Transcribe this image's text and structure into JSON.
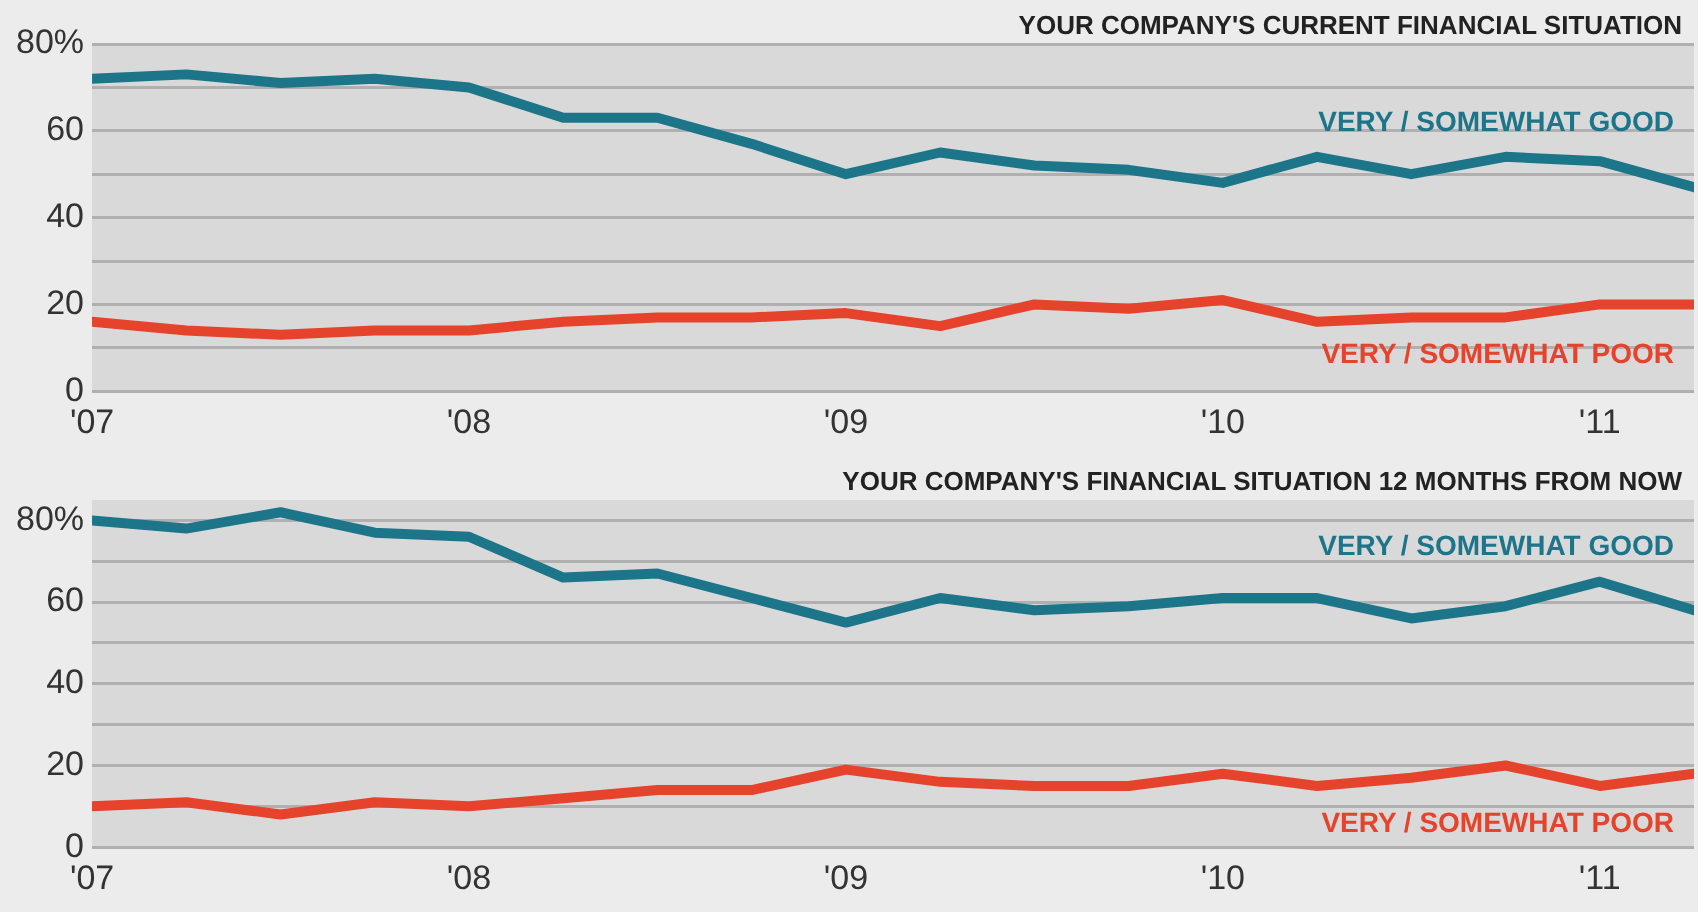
{
  "chart_data": [
    {
      "type": "line",
      "title": "YOUR COMPANY'S CURRENT FINANCIAL SITUATION",
      "x": [
        2007,
        2007.25,
        2007.5,
        2007.75,
        2008,
        2008.25,
        2008.5,
        2008.75,
        2009,
        2009.25,
        2009.5,
        2009.75,
        2010,
        2010.25,
        2010.5,
        2010.75,
        2011,
        2011.25
      ],
      "xlim": [
        2007,
        2011.25
      ],
      "xticks": [
        {
          "value": 2007,
          "label": "'07"
        },
        {
          "value": 2008,
          "label": "'08"
        },
        {
          "value": 2009,
          "label": "'09"
        },
        {
          "value": 2010,
          "label": "'10"
        },
        {
          "value": 2011,
          "label": "'11"
        }
      ],
      "ylim": [
        0,
        80
      ],
      "yticks": [
        0,
        {
          "value": 10,
          "label": null
        },
        20,
        {
          "value": 30,
          "label": null
        },
        40,
        {
          "value": 50,
          "label": null
        },
        60,
        {
          "value": 70,
          "label": null
        },
        {
          "value": 80,
          "label": "80%"
        }
      ],
      "grid": "y",
      "legend": false,
      "marker": "none",
      "line_style": "solid",
      "series": [
        {
          "name": "VERY / SOMEWHAT GOOD",
          "color": "#1d7589",
          "values": [
            72,
            73,
            71,
            72,
            70,
            63,
            63,
            57,
            50,
            55,
            52,
            51,
            48,
            54,
            50,
            54,
            53,
            47
          ]
        },
        {
          "name": "VERY / SOMEWHAT POOR",
          "color": "#e5432b",
          "values": [
            16,
            14,
            13,
            14,
            14,
            16,
            17,
            17,
            18,
            15,
            20,
            19,
            21,
            16,
            17,
            17,
            20,
            20
          ]
        }
      ]
    },
    {
      "type": "line",
      "title": "YOUR COMPANY'S FINANCIAL SITUATION 12 MONTHS FROM NOW",
      "x": [
        2007,
        2007.25,
        2007.5,
        2007.75,
        2008,
        2008.25,
        2008.5,
        2008.75,
        2009,
        2009.25,
        2009.5,
        2009.75,
        2010,
        2010.25,
        2010.5,
        2010.75,
        2011,
        2011.25
      ],
      "xlim": [
        2007,
        2011.25
      ],
      "xticks": [
        {
          "value": 2007,
          "label": "'07"
        },
        {
          "value": 2008,
          "label": "'08"
        },
        {
          "value": 2009,
          "label": "'09"
        },
        {
          "value": 2010,
          "label": "'10"
        },
        {
          "value": 2011,
          "label": "'11"
        }
      ],
      "ylim": [
        0,
        85
      ],
      "yticks": [
        0,
        {
          "value": 10,
          "label": null
        },
        20,
        {
          "value": 30,
          "label": null
        },
        40,
        {
          "value": 50,
          "label": null
        },
        60,
        {
          "value": 70,
          "label": null
        },
        {
          "value": 80,
          "label": "80%"
        }
      ],
      "grid": "y",
      "legend": false,
      "marker": "none",
      "line_style": "solid",
      "series": [
        {
          "name": "VERY / SOMEWHAT GOOD",
          "color": "#1d7589",
          "values": [
            80,
            78,
            82,
            77,
            76,
            66,
            67,
            61,
            55,
            61,
            58,
            59,
            61,
            61,
            56,
            59,
            65,
            58
          ]
        },
        {
          "name": "VERY / SOMEWHAT POOR",
          "color": "#e5432b",
          "values": [
            10,
            11,
            8,
            11,
            10,
            12,
            14,
            14,
            19,
            16,
            15,
            15,
            18,
            15,
            17,
            20,
            15,
            18
          ]
        }
      ]
    }
  ]
}
